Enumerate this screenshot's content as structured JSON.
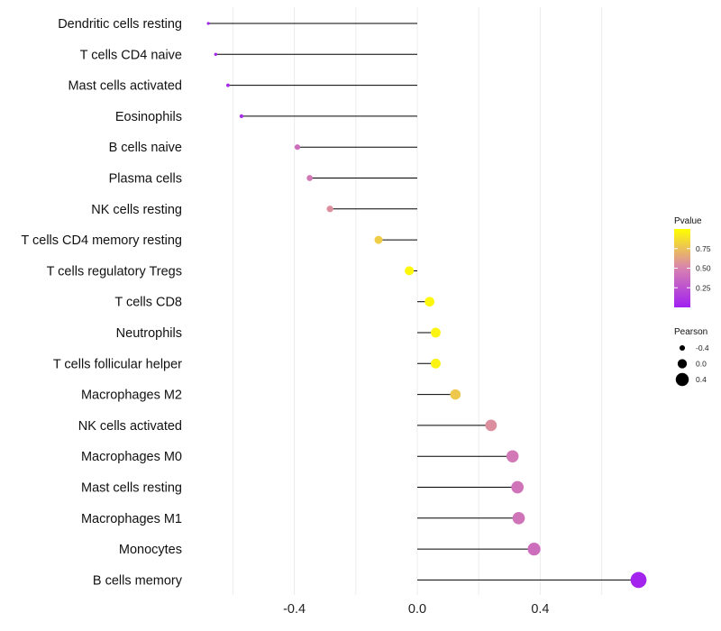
{
  "chart_data": {
    "type": "lollipop",
    "title": "",
    "xlabel": "",
    "ylabel": "",
    "xlim": [
      -0.78,
      0.78
    ],
    "xticks": [
      -0.4,
      0.0,
      0.4
    ],
    "xtick_labels": [
      "-0.4",
      "0.0",
      "0.4"
    ],
    "grid": true,
    "categories": [
      "Dendritic cells resting",
      "T cells CD4 naive",
      "Mast cells activated",
      "Eosinophils",
      "B cells naive",
      "Plasma cells",
      "NK cells resting",
      "T cells CD4 memory resting",
      "T cells regulatory  Tregs ",
      "T cells CD8",
      "Neutrophils",
      "T cells follicular helper",
      "Macrophages M2",
      "NK cells activated",
      "Macrophages M0",
      "Mast cells resting",
      "Macrophages M1",
      "Monocytes",
      "B cells memory"
    ],
    "pearson": [
      -0.68,
      -0.656,
      -0.616,
      -0.572,
      -0.39,
      -0.35,
      -0.284,
      -0.126,
      -0.026,
      0.04,
      0.06,
      0.06,
      0.124,
      0.24,
      0.31,
      0.326,
      0.33,
      0.38,
      0.72
    ],
    "pvalue": [
      0.02,
      0.03,
      0.05,
      0.08,
      0.4,
      0.45,
      0.55,
      0.8,
      0.97,
      0.97,
      0.95,
      0.95,
      0.78,
      0.55,
      0.45,
      0.43,
      0.43,
      0.4,
      0.02
    ]
  },
  "legend": {
    "color_title": "Pvalue",
    "color_ticks": [
      0.25,
      0.5,
      0.75
    ],
    "color_tick_labels": [
      "0.25",
      "0.50",
      "0.75"
    ],
    "color_range": [
      0.0,
      1.0
    ],
    "color_low": "#a020f0",
    "color_mid": "#d882b0",
    "color_high": "#ffff00",
    "size_title": "Pearson",
    "size_values": [
      -0.4,
      0.0,
      0.4
    ],
    "size_labels": [
      "-0.4",
      "0.0",
      "0.4"
    ]
  }
}
